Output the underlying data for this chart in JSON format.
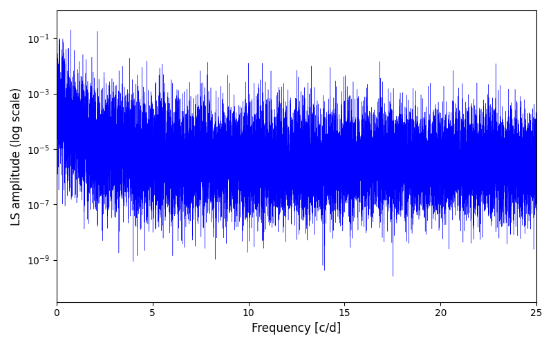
{
  "title": "",
  "xlabel": "Frequency [c/d]",
  "ylabel": "LS amplitude (log scale)",
  "line_color": "#0000FF",
  "line_width": 0.3,
  "xlim": [
    0,
    25
  ],
  "ylim_log": [
    3e-11,
    1.0
  ],
  "freq_max": 25,
  "n_points": 15000,
  "seed": 7,
  "figsize": [
    8.0,
    5.0
  ],
  "dpi": 100,
  "yticks": [
    1e-09,
    1e-07,
    1e-05,
    0.001,
    0.1
  ]
}
